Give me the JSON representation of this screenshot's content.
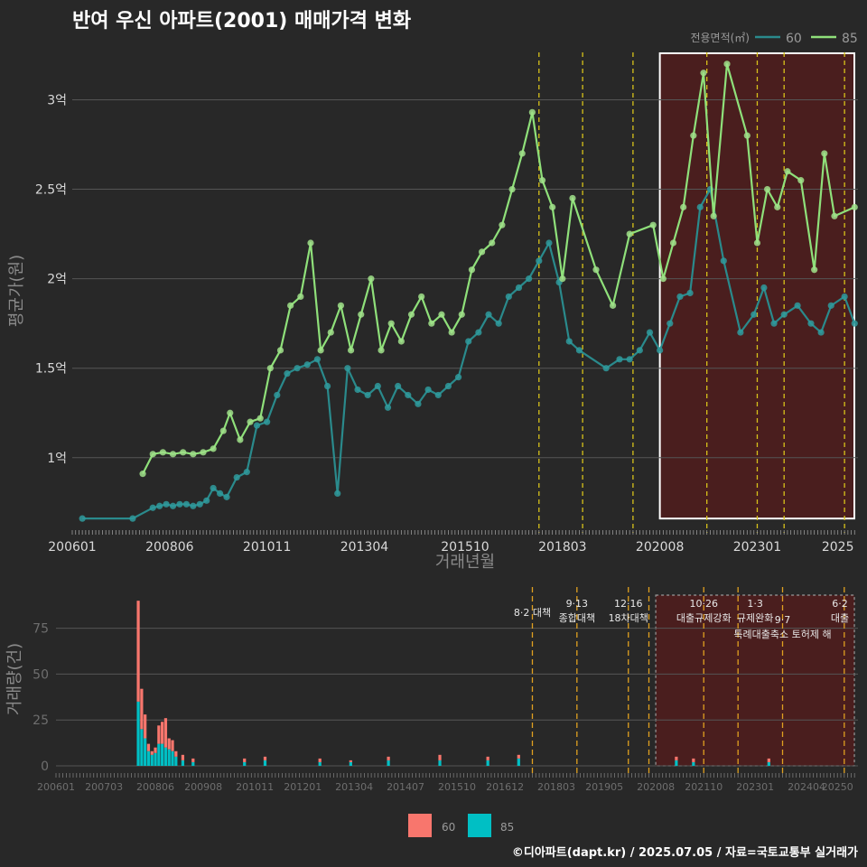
{
  "page": {
    "title": "반여 우신 아파트(2001) 매매가격 변화",
    "caption": "©디아파트(dapt.kr) / 2025.07.05 / 자료=국토교통부 실거래가"
  },
  "colors": {
    "background": "#282828",
    "grid": "#555555",
    "series_60_line": "#2a8a8c",
    "series_60_point": "#2f9a9c",
    "series_85_line": "#8fe07a",
    "series_85_point": "#a0e08a",
    "bar_60": "#f8766d",
    "bar_85": "#00bfc4",
    "event_line": "#d8c21a",
    "event_line_bottom": "#e0a020",
    "highlight_fill": "#4a1e1e",
    "highlight_border": "#ffffff"
  },
  "chart_data": [
    {
      "type": "line",
      "title": "반여 우신 아파트(2001) 매매가격 변화",
      "xlabel": "거래년월",
      "ylabel": "평균가(원)",
      "x_tick_labels": [
        "200601",
        "200806",
        "201011",
        "201304",
        "201510",
        "201803",
        "202008",
        "202301",
        "2025"
      ],
      "y_ticks": [
        1.0,
        1.5,
        2.0,
        2.5,
        3.0
      ],
      "y_tick_labels": [
        "1억",
        "1.5억",
        "2억",
        "2.5억",
        "3억"
      ],
      "ylim": [
        0.58,
        3.28
      ],
      "y_unit": "억",
      "legend": {
        "title": "전용면적(㎡)",
        "position": "top-right",
        "items": [
          "60",
          "85"
        ]
      },
      "grid": true,
      "series": [
        {
          "name": "60",
          "values": [
            [
              "2006-04",
              0.66
            ],
            [
              "2007-07",
              0.66
            ],
            [
              "2008-01",
              0.72
            ],
            [
              "2008-03",
              0.73
            ],
            [
              "2008-05",
              0.74
            ],
            [
              "2008-07",
              0.73
            ],
            [
              "2008-09",
              0.74
            ],
            [
              "2008-11",
              0.74
            ],
            [
              "2009-01",
              0.73
            ],
            [
              "2009-03",
              0.74
            ],
            [
              "2009-05",
              0.76
            ],
            [
              "2009-07",
              0.83
            ],
            [
              "2009-09",
              0.8
            ],
            [
              "2009-11",
              0.78
            ],
            [
              "2010-02",
              0.89
            ],
            [
              "2010-05",
              0.92
            ],
            [
              "2010-08",
              1.18
            ],
            [
              "2010-11",
              1.2
            ],
            [
              "2011-02",
              1.35
            ],
            [
              "2011-05",
              1.47
            ],
            [
              "2011-08",
              1.5
            ],
            [
              "2011-11",
              1.52
            ],
            [
              "2012-02",
              1.55
            ],
            [
              "2012-05",
              1.4
            ],
            [
              "2012-08",
              0.8
            ],
            [
              "2012-11",
              1.5
            ],
            [
              "2013-02",
              1.38
            ],
            [
              "2013-05",
              1.35
            ],
            [
              "2013-08",
              1.4
            ],
            [
              "2013-11",
              1.28
            ],
            [
              "2014-02",
              1.4
            ],
            [
              "2014-05",
              1.35
            ],
            [
              "2014-08",
              1.3
            ],
            [
              "2014-11",
              1.38
            ],
            [
              "2015-02",
              1.35
            ],
            [
              "2015-05",
              1.4
            ],
            [
              "2015-08",
              1.45
            ],
            [
              "2015-11",
              1.65
            ],
            [
              "2016-02",
              1.7
            ],
            [
              "2016-05",
              1.8
            ],
            [
              "2016-08",
              1.75
            ],
            [
              "2016-11",
              1.9
            ],
            [
              "2017-02",
              1.95
            ],
            [
              "2017-05",
              2.0
            ],
            [
              "2017-08",
              2.1
            ],
            [
              "2017-11",
              2.2
            ],
            [
              "2018-02",
              1.98
            ],
            [
              "2018-05",
              1.65
            ],
            [
              "2018-08",
              1.6
            ],
            [
              "2019-04",
              1.5
            ],
            [
              "2019-08",
              1.55
            ],
            [
              "2019-11",
              1.55
            ],
            [
              "2020-02",
              1.6
            ],
            [
              "2020-05",
              1.7
            ],
            [
              "2020-08",
              1.6
            ],
            [
              "2020-11",
              1.75
            ],
            [
              "2021-02",
              1.9
            ],
            [
              "2021-05",
              1.92
            ],
            [
              "2021-08",
              2.4
            ],
            [
              "2021-11",
              2.5
            ],
            [
              "2022-03",
              2.1
            ],
            [
              "2022-08",
              1.7
            ],
            [
              "2022-12",
              1.8
            ],
            [
              "2023-03",
              1.95
            ],
            [
              "2023-06",
              1.75
            ],
            [
              "2023-09",
              1.8
            ],
            [
              "2024-01",
              1.85
            ],
            [
              "2024-05",
              1.75
            ],
            [
              "2024-08",
              1.7
            ],
            [
              "2024-11",
              1.85
            ],
            [
              "2025-03",
              1.9
            ],
            [
              "2025-06",
              1.75
            ]
          ]
        },
        {
          "name": "85",
          "values": [
            [
              "2007-10",
              0.91
            ],
            [
              "2008-01",
              1.02
            ],
            [
              "2008-04",
              1.03
            ],
            [
              "2008-07",
              1.02
            ],
            [
              "2008-10",
              1.03
            ],
            [
              "2009-01",
              1.02
            ],
            [
              "2009-04",
              1.03
            ],
            [
              "2009-07",
              1.05
            ],
            [
              "2009-10",
              1.15
            ],
            [
              "2009-12",
              1.25
            ],
            [
              "2010-03",
              1.1
            ],
            [
              "2010-06",
              1.2
            ],
            [
              "2010-09",
              1.22
            ],
            [
              "2010-12",
              1.5
            ],
            [
              "2011-03",
              1.6
            ],
            [
              "2011-06",
              1.85
            ],
            [
              "2011-09",
              1.9
            ],
            [
              "2011-12",
              2.2
            ],
            [
              "2012-03",
              1.6
            ],
            [
              "2012-06",
              1.7
            ],
            [
              "2012-09",
              1.85
            ],
            [
              "2012-12",
              1.6
            ],
            [
              "2013-03",
              1.8
            ],
            [
              "2013-06",
              2.0
            ],
            [
              "2013-09",
              1.6
            ],
            [
              "2013-12",
              1.75
            ],
            [
              "2014-03",
              1.65
            ],
            [
              "2014-06",
              1.8
            ],
            [
              "2014-09",
              1.9
            ],
            [
              "2014-12",
              1.75
            ],
            [
              "2015-03",
              1.8
            ],
            [
              "2015-06",
              1.7
            ],
            [
              "2015-09",
              1.8
            ],
            [
              "2015-12",
              2.05
            ],
            [
              "2016-03",
              2.15
            ],
            [
              "2016-06",
              2.2
            ],
            [
              "2016-09",
              2.3
            ],
            [
              "2016-12",
              2.5
            ],
            [
              "2017-03",
              2.7
            ],
            [
              "2017-06",
              2.93
            ],
            [
              "2017-09",
              2.55
            ],
            [
              "2017-12",
              2.4
            ],
            [
              "2018-03",
              2.0
            ],
            [
              "2018-06",
              2.45
            ],
            [
              "2019-01",
              2.05
            ],
            [
              "2019-06",
              1.85
            ],
            [
              "2019-11",
              2.25
            ],
            [
              "2020-06",
              2.3
            ],
            [
              "2020-09",
              2.0
            ],
            [
              "2020-12",
              2.2
            ],
            [
              "2021-03",
              2.4
            ],
            [
              "2021-06",
              2.8
            ],
            [
              "2021-09",
              3.15
            ],
            [
              "2021-12",
              2.35
            ],
            [
              "2022-04",
              3.2
            ],
            [
              "2022-10",
              2.8
            ],
            [
              "2023-01",
              2.2
            ],
            [
              "2023-04",
              2.5
            ],
            [
              "2023-07",
              2.4
            ],
            [
              "2023-10",
              2.6
            ],
            [
              "2024-02",
              2.55
            ],
            [
              "2024-06",
              2.05
            ],
            [
              "2024-09",
              2.7
            ],
            [
              "2024-12",
              2.35
            ],
            [
              "2025-06",
              2.4
            ]
          ]
        }
      ],
      "event_lines": [
        "2017-08",
        "2018-09",
        "2019-12",
        "2021-10",
        "2023-01",
        "2023-09",
        "2025-03"
      ],
      "highlight": {
        "from": "2020-08",
        "to": "2025-07"
      }
    },
    {
      "type": "bar",
      "ylabel": "거래량(건)",
      "y_ticks": [
        0,
        25,
        50,
        75
      ],
      "y_tick_labels": [
        "0",
        "25",
        "50",
        "75"
      ],
      "ylim": [
        0,
        95
      ],
      "x_tick_labels": [
        "200601",
        "200703",
        "200806",
        "200908",
        "201011",
        "201201",
        "201304",
        "201407",
        "201510",
        "201612",
        "201803",
        "201905",
        "202008",
        "202110",
        "202301",
        "202404",
        "20250"
      ],
      "legend": {
        "position": "bottom",
        "items": [
          "60",
          "85"
        ]
      },
      "series": [
        {
          "name": "60",
          "values": [
            [
              "2008-01",
              90
            ],
            [
              "2008-02",
              42
            ],
            [
              "2008-03",
              28
            ],
            [
              "2008-04",
              12
            ],
            [
              "2008-05",
              8
            ],
            [
              "2008-06",
              10
            ],
            [
              "2008-07",
              22
            ],
            [
              "2008-08",
              24
            ],
            [
              "2008-09",
              26
            ],
            [
              "2008-10",
              15
            ],
            [
              "2008-11",
              14
            ],
            [
              "2008-12",
              8
            ],
            [
              "2009-02",
              6
            ],
            [
              "2009-05",
              4
            ],
            [
              "2010-08",
              4
            ],
            [
              "2011-02",
              5
            ],
            [
              "2012-06",
              4
            ],
            [
              "2013-03",
              3
            ],
            [
              "2014-02",
              5
            ],
            [
              "2015-05",
              6
            ],
            [
              "2016-07",
              5
            ],
            [
              "2017-04",
              6
            ],
            [
              "2021-02",
              5
            ],
            [
              "2021-07",
              4
            ],
            [
              "2023-05",
              4
            ]
          ]
        },
        {
          "name": "85",
          "values": [
            [
              "2008-01",
              35
            ],
            [
              "2008-02",
              20
            ],
            [
              "2008-03",
              15
            ],
            [
              "2008-04",
              8
            ],
            [
              "2008-05",
              6
            ],
            [
              "2008-06",
              7
            ],
            [
              "2008-07",
              12
            ],
            [
              "2008-08",
              12
            ],
            [
              "2008-09",
              10
            ],
            [
              "2008-10",
              9
            ],
            [
              "2008-11",
              8
            ],
            [
              "2008-12",
              5
            ],
            [
              "2009-02",
              3
            ],
            [
              "2009-05",
              2
            ],
            [
              "2010-08",
              2
            ],
            [
              "2011-02",
              3
            ],
            [
              "2012-06",
              2
            ],
            [
              "2013-03",
              2
            ],
            [
              "2014-02",
              3
            ],
            [
              "2015-05",
              3
            ],
            [
              "2016-07",
              3
            ],
            [
              "2017-04",
              4
            ],
            [
              "2021-02",
              3
            ],
            [
              "2021-07",
              2
            ],
            [
              "2023-05",
              2
            ]
          ]
        }
      ],
      "event_lines": [
        "2017-08",
        "2018-09",
        "2019-12",
        "2020-06",
        "2021-10",
        "2022-08",
        "2023-09",
        "2025-03"
      ],
      "annotations": [
        {
          "date": "2017-08",
          "lines": [
            "8·2 대책"
          ]
        },
        {
          "date": "2018-09",
          "lines": [
            "9·13",
            "종합대책"
          ]
        },
        {
          "date": "2019-12",
          "lines": [
            "12·16",
            "18차대책"
          ]
        },
        {
          "date": "2021-10",
          "lines": [
            "10·26",
            "대출규제강화"
          ]
        },
        {
          "date": "2023-01",
          "lines": [
            "1·3",
            "규제완화"
          ]
        },
        {
          "date": "2023-09",
          "lines": [
            "9·7",
            "특례대출축소 토허제 해"
          ]
        },
        {
          "date": "2025-06",
          "lines": [
            "6·2",
            "대출"
          ]
        }
      ],
      "highlight": {
        "from": "2020-08",
        "to": "2025-07"
      }
    }
  ]
}
